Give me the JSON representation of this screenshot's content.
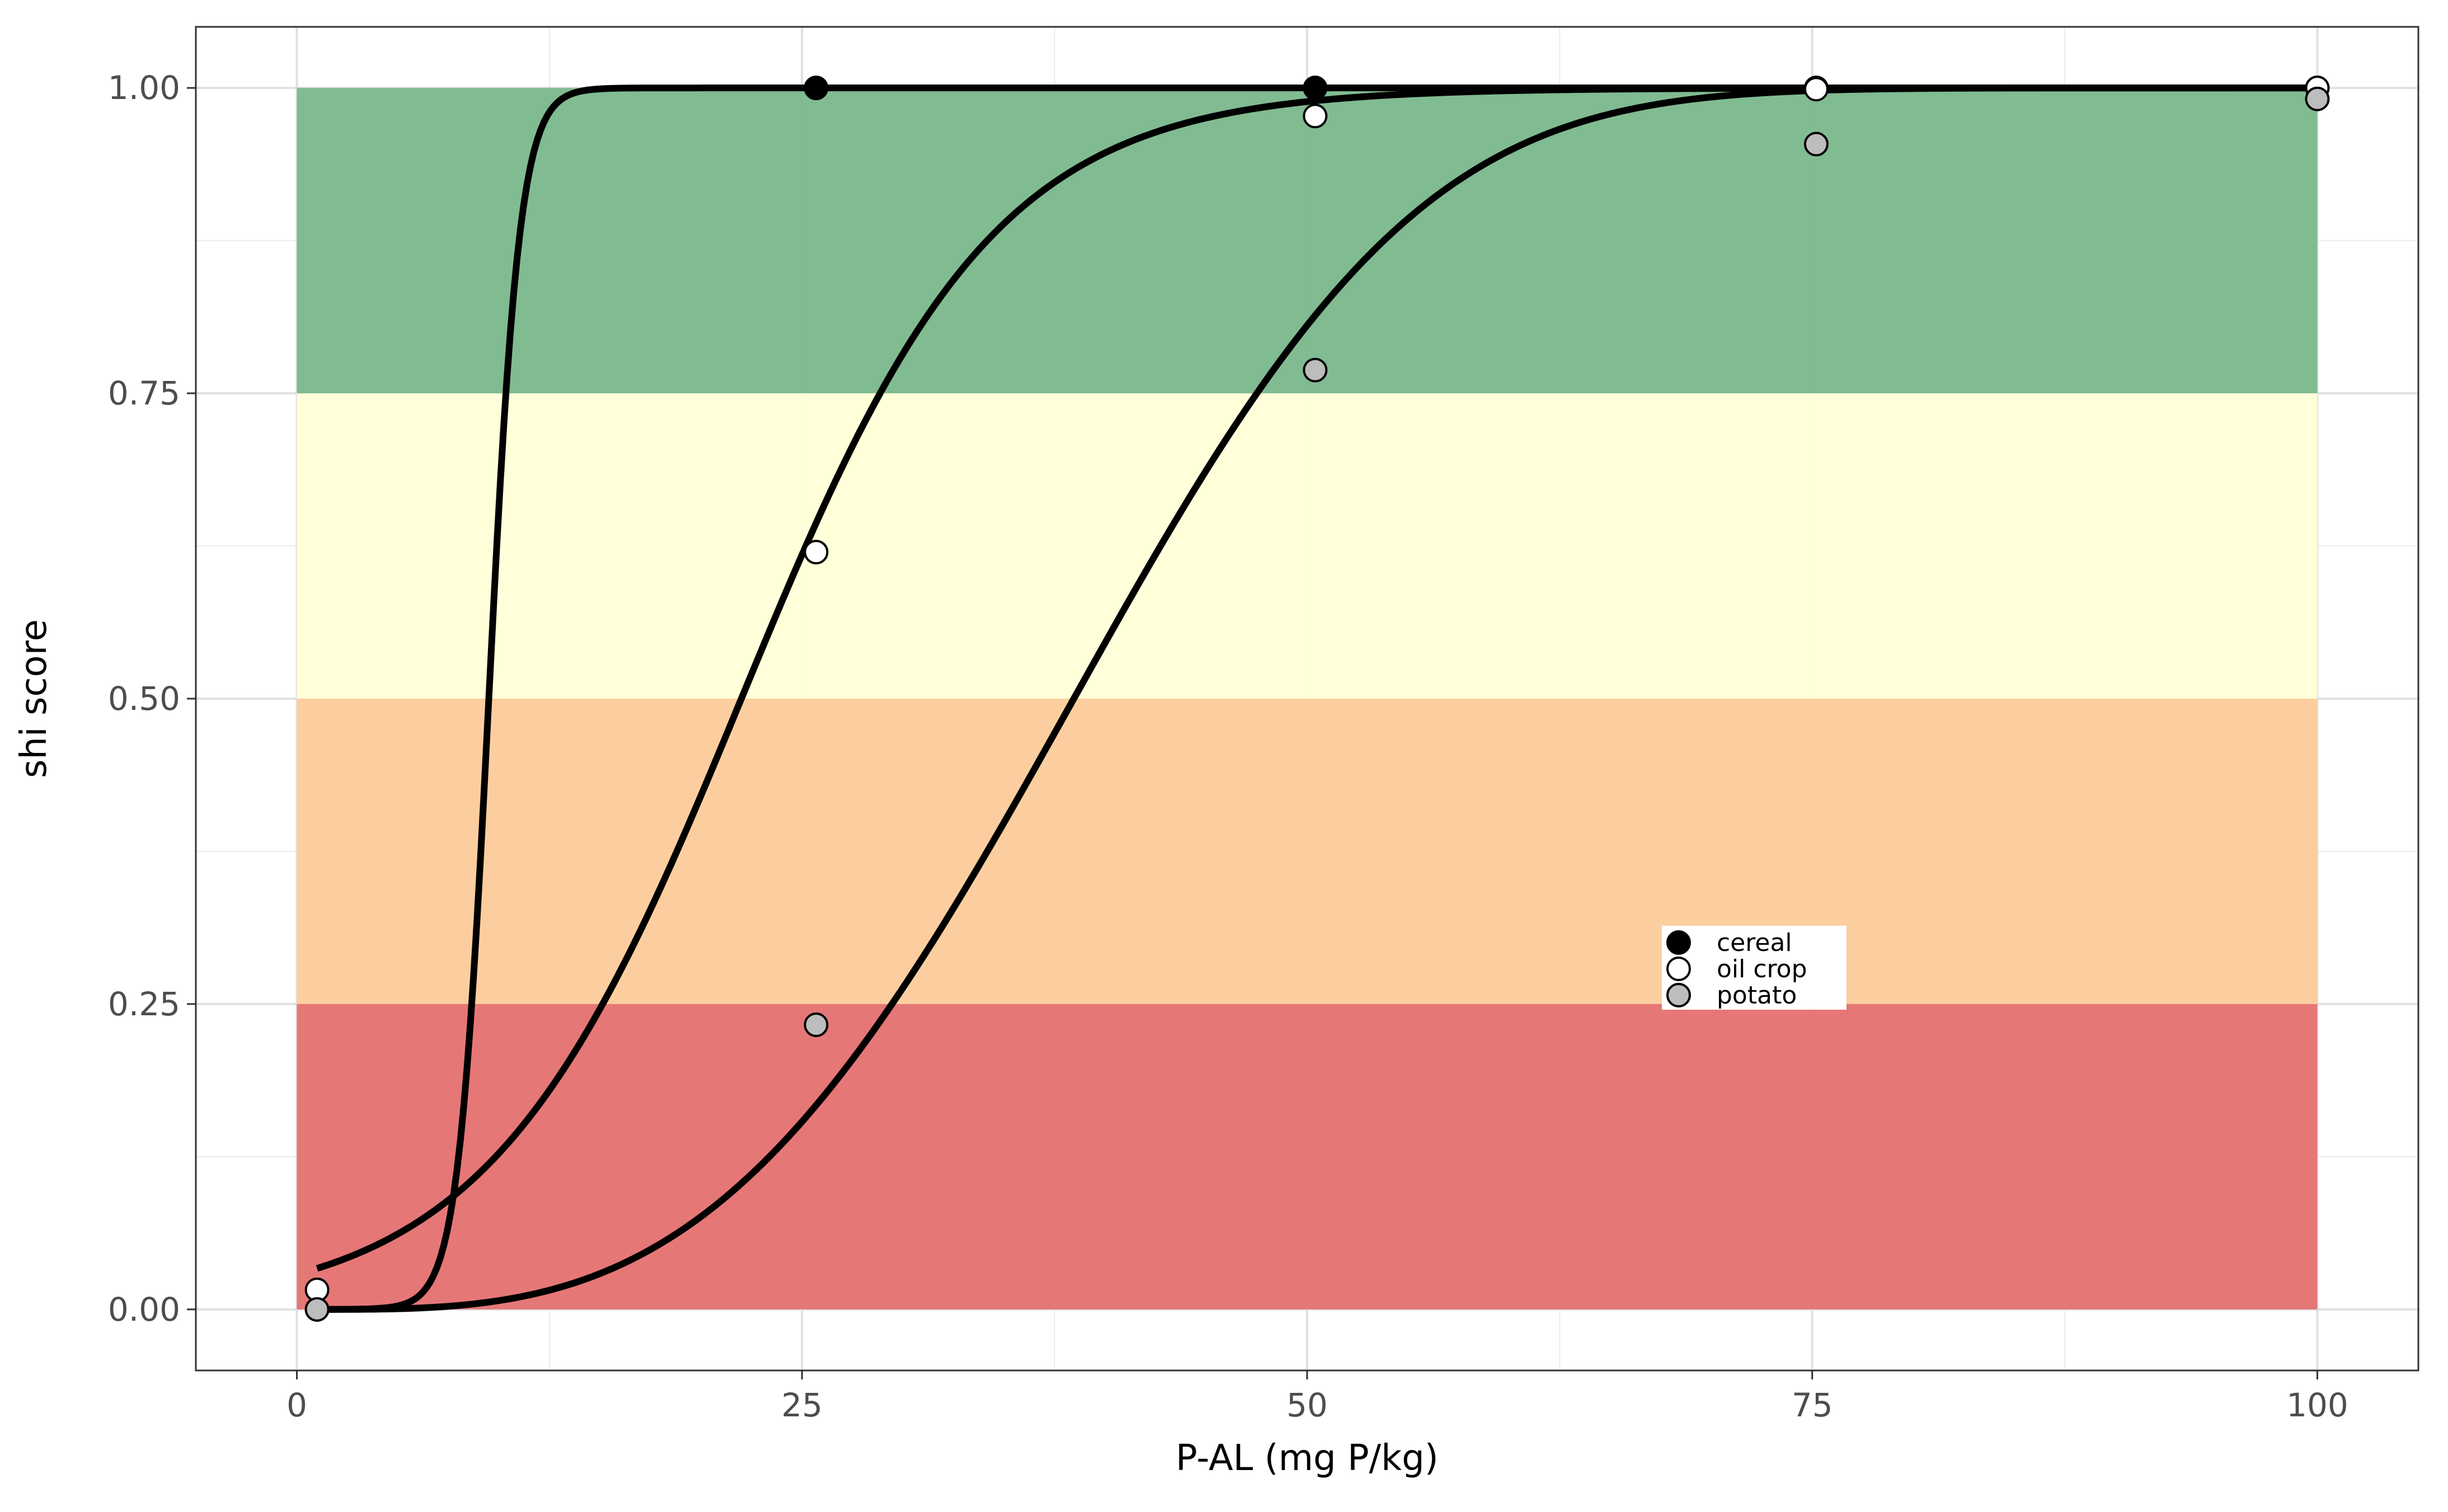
{
  "chart_data": {
    "type": "line",
    "xlabel": "P-AL (mg P/kg)",
    "ylabel": "shi score",
    "xlim": [
      -5,
      105
    ],
    "ylim": [
      -0.05,
      1.05
    ],
    "x_ticks": [
      0,
      25,
      50,
      75,
      100
    ],
    "x_tick_labels": [
      "0",
      "25",
      "50",
      "75",
      "100"
    ],
    "y_ticks": [
      0,
      0.25,
      0.5,
      0.75,
      1.0
    ],
    "y_tick_labels": [
      "0.00",
      "0.25",
      "0.50",
      "0.75",
      "1.00"
    ],
    "grid": true,
    "background_bands": [
      {
        "ymin": 0.0,
        "ymax": 0.25,
        "xmin": 0,
        "xmax": 100,
        "color": "#e57373"
      },
      {
        "ymin": 0.25,
        "ymax": 0.5,
        "xmin": 0,
        "xmax": 100,
        "color": "#fccc9c"
      },
      {
        "ymin": 0.5,
        "ymax": 0.75,
        "xmin": 0,
        "xmax": 100,
        "color": "#ffffd8"
      },
      {
        "ymin": 0.75,
        "ymax": 1.0,
        "xmin": 0,
        "xmax": 100,
        "color": "#7db98e"
      }
    ],
    "legend": {
      "position": "inside-center-right",
      "entries": [
        {
          "label": "cereal",
          "fill": "#000000"
        },
        {
          "label": "oil crop",
          "fill": "#ffffff"
        },
        {
          "label": "potato",
          "fill": "#bdbdbd"
        }
      ]
    },
    "series": [
      {
        "name": "cereal",
        "marker_fill": "#000000",
        "curve": {
          "type": "logistic",
          "midpoint": 9.5,
          "slope": 1.3
        },
        "points": [
          [
            1,
            0.0
          ],
          [
            25.7,
            1.0
          ],
          [
            50.4,
            1.0
          ],
          [
            75.2,
            1.0
          ],
          [
            100,
            1.0
          ]
        ]
      },
      {
        "name": "oil crop",
        "marker_fill": "#ffffff",
        "curve": {
          "type": "logistic",
          "midpoint": 22.0,
          "slope": 0.16
        },
        "points": [
          [
            1,
            0.016
          ],
          [
            25.7,
            0.62
          ],
          [
            50.4,
            0.977
          ],
          [
            75.2,
            0.999
          ],
          [
            100,
            1.0
          ]
        ]
      },
      {
        "name": "potato",
        "marker_fill": "#bdbdbd",
        "curve": {
          "type": "cdf_shape",
          "k": 3.2,
          "lambda": 42
        },
        "points": [
          [
            1,
            0.0
          ],
          [
            25.7,
            0.233
          ],
          [
            50.4,
            0.769
          ],
          [
            75.2,
            0.954
          ],
          [
            100,
            0.991
          ]
        ]
      }
    ]
  }
}
